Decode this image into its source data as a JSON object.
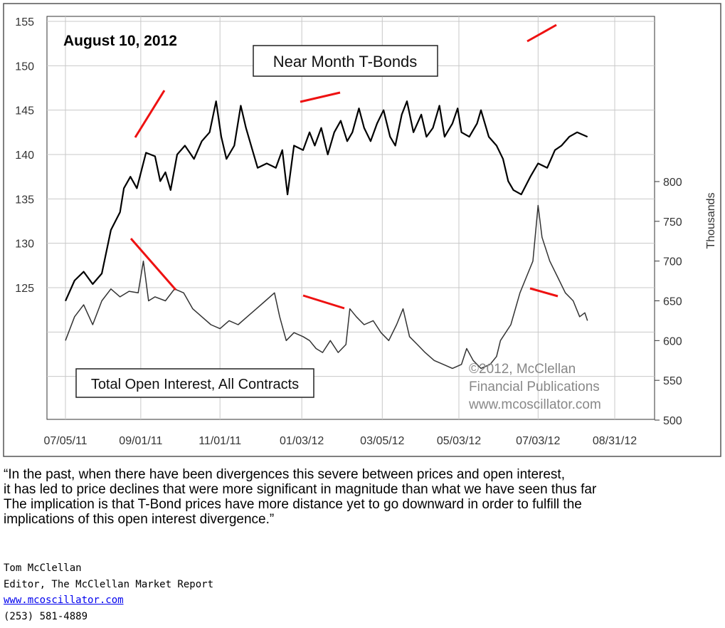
{
  "chart_data": {
    "type": "line",
    "date_label": "August 10, 2012",
    "price_title": "Near Month T-Bonds",
    "oi_title": "Total Open Interest, All Contracts",
    "right_axis_label": "Thousands",
    "copyright": [
      "©2012, McClellan",
      "Financial Publications",
      "www.mcoscillator.com"
    ],
    "x_ticks": [
      "07/05/11",
      "09/01/11",
      "11/01/11",
      "01/03/12",
      "03/05/12",
      "05/03/12",
      "07/03/12",
      "08/31/12"
    ],
    "left_ticks": [
      "155",
      "150",
      "145",
      "140",
      "135",
      "130",
      "125"
    ],
    "right_ticks": [
      "800",
      "750",
      "700",
      "650",
      "600",
      "550",
      "500"
    ],
    "left_ylim": [
      125,
      155
    ],
    "right_ylim": [
      500,
      800
    ],
    "x_range": [
      "2011-07-05",
      "2012-08-31"
    ],
    "grid": true,
    "series": [
      {
        "name": "Near Month T-Bonds",
        "axis": "left",
        "color": "#000000",
        "points": [
          [
            "2011-07-05",
            123.5
          ],
          [
            "2011-07-12",
            125.8
          ],
          [
            "2011-07-19",
            126.8
          ],
          [
            "2011-07-26",
            125.4
          ],
          [
            "2011-08-02",
            126.6
          ],
          [
            "2011-08-09",
            131.5
          ],
          [
            "2011-08-16",
            133.5
          ],
          [
            "2011-08-19",
            136.2
          ],
          [
            "2011-08-24",
            137.5
          ],
          [
            "2011-08-29",
            136.2
          ],
          [
            "2011-09-05",
            140.2
          ],
          [
            "2011-09-12",
            139.8
          ],
          [
            "2011-09-16",
            137.0
          ],
          [
            "2011-09-20",
            138.0
          ],
          [
            "2011-09-24",
            136.0
          ],
          [
            "2011-09-29",
            140.0
          ],
          [
            "2011-10-05",
            141.0
          ],
          [
            "2011-10-12",
            139.5
          ],
          [
            "2011-10-18",
            141.5
          ],
          [
            "2011-10-24",
            142.5
          ],
          [
            "2011-10-29",
            146.0
          ],
          [
            "2011-11-02",
            142.0
          ],
          [
            "2011-11-06",
            139.5
          ],
          [
            "2011-11-12",
            141.0
          ],
          [
            "2011-11-17",
            145.5
          ],
          [
            "2011-11-21",
            143.0
          ],
          [
            "2011-11-26",
            140.5
          ],
          [
            "2011-11-30",
            138.5
          ],
          [
            "2011-12-07",
            139.0
          ],
          [
            "2011-12-14",
            138.5
          ],
          [
            "2011-12-19",
            140.5
          ],
          [
            "2011-12-23",
            135.5
          ],
          [
            "2011-12-28",
            141.0
          ],
          [
            "2012-01-04",
            140.5
          ],
          [
            "2012-01-09",
            142.5
          ],
          [
            "2012-01-13",
            141.0
          ],
          [
            "2012-01-18",
            143.0
          ],
          [
            "2012-01-23",
            140.0
          ],
          [
            "2012-01-28",
            142.5
          ],
          [
            "2012-02-02",
            143.8
          ],
          [
            "2012-02-07",
            141.5
          ],
          [
            "2012-02-11",
            142.5
          ],
          [
            "2012-02-16",
            145.2
          ],
          [
            "2012-02-20",
            143.0
          ],
          [
            "2012-02-25",
            141.5
          ],
          [
            "2012-03-01",
            143.5
          ],
          [
            "2012-03-06",
            145.0
          ],
          [
            "2012-03-11",
            142.0
          ],
          [
            "2012-03-15",
            141.0
          ],
          [
            "2012-03-20",
            144.5
          ],
          [
            "2012-03-24",
            146.0
          ],
          [
            "2012-03-29",
            142.5
          ],
          [
            "2012-04-04",
            144.5
          ],
          [
            "2012-04-08",
            142.0
          ],
          [
            "2012-04-13",
            143.0
          ],
          [
            "2012-04-18",
            145.5
          ],
          [
            "2012-04-22",
            142.0
          ],
          [
            "2012-04-28",
            143.5
          ],
          [
            "2012-05-02",
            145.2
          ],
          [
            "2012-05-05",
            142.5
          ],
          [
            "2012-05-11",
            142.0
          ],
          [
            "2012-05-17",
            143.5
          ],
          [
            "2012-05-20",
            145.0
          ],
          [
            "2012-05-26",
            142.0
          ],
          [
            "2012-06-01",
            141.0
          ],
          [
            "2012-06-06",
            139.5
          ],
          [
            "2012-06-10",
            137.0
          ],
          [
            "2012-06-14",
            136.0
          ],
          [
            "2012-06-20",
            135.5
          ],
          [
            "2012-06-27",
            137.5
          ],
          [
            "2012-07-03",
            139.0
          ],
          [
            "2012-07-10",
            138.5
          ],
          [
            "2012-07-16",
            140.5
          ],
          [
            "2012-07-21",
            141.0
          ],
          [
            "2012-07-27",
            142.0
          ],
          [
            "2012-08-02",
            142.5
          ],
          [
            "2012-08-10",
            142.0
          ]
        ]
      },
      {
        "name": "Total Open Interest, All Contracts",
        "axis": "right",
        "color": "#333333",
        "points": [
          [
            "2011-07-05",
            600
          ],
          [
            "2011-07-12",
            630
          ],
          [
            "2011-07-19",
            645
          ],
          [
            "2011-07-26",
            620
          ],
          [
            "2011-08-02",
            650
          ],
          [
            "2011-08-09",
            665
          ],
          [
            "2011-08-16",
            655
          ],
          [
            "2011-08-23",
            662
          ],
          [
            "2011-08-30",
            660
          ],
          [
            "2011-09-03",
            700
          ],
          [
            "2011-09-07",
            650
          ],
          [
            "2011-09-12",
            655
          ],
          [
            "2011-09-20",
            650
          ],
          [
            "2011-09-27",
            665
          ],
          [
            "2011-10-04",
            660
          ],
          [
            "2011-10-11",
            640
          ],
          [
            "2011-10-18",
            630
          ],
          [
            "2011-10-25",
            620
          ],
          [
            "2011-11-01",
            615
          ],
          [
            "2011-11-08",
            625
          ],
          [
            "2011-11-15",
            620
          ],
          [
            "2011-11-22",
            630
          ],
          [
            "2011-11-29",
            640
          ],
          [
            "2011-12-06",
            650
          ],
          [
            "2011-12-13",
            660
          ],
          [
            "2011-12-17",
            630
          ],
          [
            "2011-12-22",
            600
          ],
          [
            "2011-12-28",
            610
          ],
          [
            "2012-01-04",
            605
          ],
          [
            "2012-01-09",
            600
          ],
          [
            "2012-01-14",
            590
          ],
          [
            "2012-01-19",
            585
          ],
          [
            "2012-01-25",
            600
          ],
          [
            "2012-01-31",
            585
          ],
          [
            "2012-02-06",
            595
          ],
          [
            "2012-02-09",
            640
          ],
          [
            "2012-02-14",
            630
          ],
          [
            "2012-02-20",
            620
          ],
          [
            "2012-02-27",
            625
          ],
          [
            "2012-03-04",
            610
          ],
          [
            "2012-03-10",
            600
          ],
          [
            "2012-03-16",
            620
          ],
          [
            "2012-03-21",
            640
          ],
          [
            "2012-03-26",
            605
          ],
          [
            "2012-04-01",
            595
          ],
          [
            "2012-04-07",
            585
          ],
          [
            "2012-04-14",
            575
          ],
          [
            "2012-04-21",
            570
          ],
          [
            "2012-04-28",
            565
          ],
          [
            "2012-05-05",
            570
          ],
          [
            "2012-05-09",
            590
          ],
          [
            "2012-05-14",
            575
          ],
          [
            "2012-05-20",
            565
          ],
          [
            "2012-05-27",
            570
          ],
          [
            "2012-06-01",
            580
          ],
          [
            "2012-06-04",
            600
          ],
          [
            "2012-06-12",
            620
          ],
          [
            "2012-06-19",
            660
          ],
          [
            "2012-06-24",
            680
          ],
          [
            "2012-06-29",
            700
          ],
          [
            "2012-07-03",
            770
          ],
          [
            "2012-07-06",
            730
          ],
          [
            "2012-07-12",
            700
          ],
          [
            "2012-07-18",
            680
          ],
          [
            "2012-07-24",
            660
          ],
          [
            "2012-07-30",
            650
          ],
          [
            "2012-08-04",
            630
          ],
          [
            "2012-08-08",
            635
          ],
          [
            "2012-08-10",
            625
          ]
        ]
      }
    ]
  },
  "quote": [
    "“In the past, when there have been divergences this severe between prices and open interest,",
    "it has led to price declines that were more significant in magnitude than what we have seen thus far",
    "The implication is that T-Bond prices have more distance yet to go downward in order to fulfill the",
    "implications of this open interest divergence.”"
  ],
  "signature": {
    "name": "Tom McClellan",
    "title": "Editor, The McClellan Market Report",
    "url": "www.mcoscillator.com",
    "phone": "(253) 581-4889"
  }
}
